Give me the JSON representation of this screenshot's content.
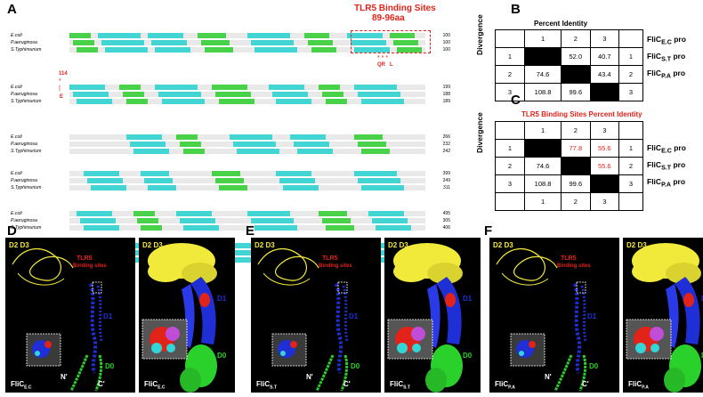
{
  "panel_labels": {
    "A": "A",
    "B": "B",
    "C": "C",
    "D": "D",
    "E": "E",
    "F": "F"
  },
  "alignment": {
    "title_line1": "TLR5 Binding Sites",
    "title_line2": "89-96aa",
    "species": [
      "E.coli",
      "P.aeruginosa",
      "S.Typhimurium"
    ],
    "blocks": [
      {
        "ends": [
          "100",
          "100",
          "100"
        ]
      },
      {
        "ends": [
          "199",
          "188",
          "189"
        ]
      },
      {
        "ends": [
          "266",
          "232",
          "242"
        ]
      },
      {
        "ends": [
          "399",
          "249",
          "311"
        ]
      },
      {
        "ends": [
          "495",
          "305",
          "406"
        ]
      },
      {
        "ends": [
          "584",
          "394",
          "495"
        ]
      }
    ],
    "marker_114": "114",
    "marker_E": "E",
    "mutation_marks": "QR   L"
  },
  "percent_identity_table": {
    "title": "Percent Identity",
    "col_headers": [
      "1",
      "2",
      "3"
    ],
    "row_numbers": [
      "1",
      "2",
      "3"
    ],
    "right_numbers": [
      "1",
      "2",
      "3"
    ],
    "rows": [
      [
        "",
        "52.0",
        "40.7"
      ],
      [
        "74.6",
        "",
        "43.4"
      ],
      [
        "108.8",
        "99.6",
        ""
      ]
    ],
    "side_label": "Divergence",
    "row_labels": [
      {
        "main": "FliC",
        "sub": "E.C",
        "tail": " pro"
      },
      {
        "main": "FliC",
        "sub": "S.T",
        "tail": " pro"
      },
      {
        "main": "FliC",
        "sub": "P.A",
        "tail": " pro"
      }
    ]
  },
  "tlr5_table": {
    "title": "TLR5 Binding Sites Percent Identity",
    "col_headers": [
      "1",
      "2",
      "3"
    ],
    "bottom_headers": [
      "1",
      "2",
      "3"
    ],
    "row_numbers": [
      "1",
      "2",
      "3"
    ],
    "right_numbers": [
      "1",
      "2",
      "3"
    ],
    "rows": [
      [
        "",
        "77.8",
        "55.6"
      ],
      [
        "74.6",
        "",
        "55.6"
      ],
      [
        "108.8",
        "99.6",
        ""
      ]
    ],
    "side_label": "Divergence",
    "row_labels": [
      {
        "main": "FliC",
        "sub": "E.C",
        "tail": " pro"
      },
      {
        "main": "FliC",
        "sub": "S.T",
        "tail": " pro"
      },
      {
        "main": "FliC",
        "sub": "P.A",
        "tail": " pro"
      }
    ]
  },
  "structures": {
    "D": {
      "d2d3": "D2 D3",
      "tlr5": "TLR5",
      "binding": "Binding sites",
      "d0": "D0",
      "nterm": "N'",
      "cterm": "C'",
      "d1": "D1",
      "left_caption": "FliC",
      "left_sub": "E.C",
      "right_caption": "FliC",
      "right_sub": "E.C",
      "d2d3_right": "D2 D3",
      "d0_right": "D0",
      "d1_right": "D1"
    },
    "E": {
      "d2d3": "D2 D3",
      "tlr5": "TLR5",
      "binding": "Binding sites",
      "d0": "D0",
      "nterm": "N'",
      "cterm": "C'",
      "d1": "D1",
      "left_caption": "FliC",
      "left_sub": "S.T",
      "right_caption": "FliC",
      "right_sub": "S.T",
      "d2d3_right": "D2 D3",
      "d0_right": "D0",
      "d1_right": "D1"
    },
    "F": {
      "d2d3": "D2 D3",
      "tlr5": "TLR5",
      "binding": "Binding sites",
      "d0": "D0",
      "nterm": "N'",
      "cterm": "C'",
      "d1": "D1",
      "left_caption": "FliC",
      "left_sub": "P.A",
      "right_caption": "FliC",
      "right_sub": "P.A",
      "d2d3_right": "D2 D3",
      "d0_right": "D0",
      "d1_right": "D1"
    }
  },
  "colors": {
    "red": "#e2231a",
    "blue": "#1f2fd6",
    "yellow": "#f2ea3a",
    "green": "#2bd12b",
    "cyan": "#33d6d6",
    "highlight_green": "#4ad14a",
    "highlight_cyan": "#43d4d4"
  }
}
